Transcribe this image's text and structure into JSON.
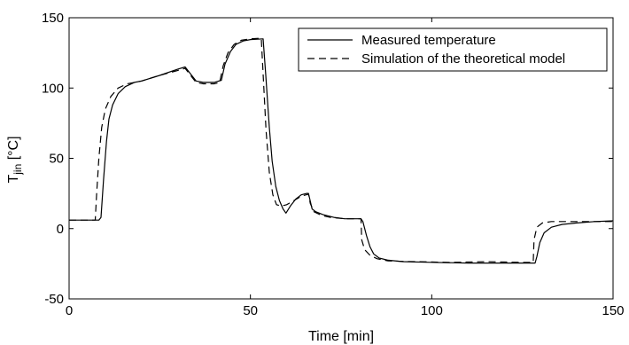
{
  "chart_data": {
    "type": "line",
    "xlabel": "Time [min]",
    "ylabel": {
      "base": "T",
      "sub": "jin",
      "rest": " [°C]"
    },
    "xlim": [
      0,
      150
    ],
    "ylim": [
      -50,
      150
    ],
    "xticks": [
      0,
      50,
      100,
      150
    ],
    "yticks": [
      -50,
      0,
      50,
      100,
      150
    ],
    "xtick_labels": [
      "0",
      "50",
      "100",
      "150"
    ],
    "ytick_labels": [
      "-50",
      "0",
      "50",
      "100",
      "150"
    ],
    "grid": false,
    "legend_position": "top-right",
    "series": [
      {
        "name": "Measured temperature",
        "style": "solid",
        "color": "#000000",
        "points": [
          [
            0,
            6
          ],
          [
            8.2,
            6
          ],
          [
            8.8,
            8
          ],
          [
            9.5,
            35
          ],
          [
            10.3,
            62
          ],
          [
            11,
            78
          ],
          [
            12,
            88
          ],
          [
            13.5,
            96
          ],
          [
            15.5,
            101
          ],
          [
            18,
            104
          ],
          [
            20,
            105
          ],
          [
            25,
            109
          ],
          [
            30,
            113.5
          ],
          [
            32,
            115
          ],
          [
            33.5,
            110
          ],
          [
            35,
            105
          ],
          [
            37,
            104
          ],
          [
            40,
            104
          ],
          [
            42,
            105.5
          ],
          [
            43,
            117
          ],
          [
            44.5,
            126
          ],
          [
            46,
            131
          ],
          [
            48,
            133.5
          ],
          [
            50,
            134.5
          ],
          [
            53.5,
            135
          ],
          [
            54.2,
            110
          ],
          [
            55.2,
            72
          ],
          [
            56,
            48
          ],
          [
            57,
            30
          ],
          [
            58,
            20
          ],
          [
            59,
            14
          ],
          [
            59.8,
            11
          ],
          [
            61,
            16
          ],
          [
            62.5,
            21
          ],
          [
            64,
            24
          ],
          [
            65.5,
            25
          ],
          [
            66,
            25
          ],
          [
            67,
            14
          ],
          [
            68,
            12
          ],
          [
            70,
            10
          ],
          [
            73,
            8
          ],
          [
            76,
            7
          ],
          [
            80.5,
            7
          ],
          [
            81,
            5
          ],
          [
            82,
            -5
          ],
          [
            83,
            -13
          ],
          [
            84,
            -18
          ],
          [
            85.5,
            -21
          ],
          [
            88,
            -22.5
          ],
          [
            92,
            -23.5
          ],
          [
            100,
            -24
          ],
          [
            110,
            -24.5
          ],
          [
            120,
            -24.5
          ],
          [
            128.5,
            -24.5
          ],
          [
            129,
            -20
          ],
          [
            129.8,
            -10
          ],
          [
            131,
            -3
          ],
          [
            133,
            1
          ],
          [
            136,
            3
          ],
          [
            140,
            4
          ],
          [
            145,
            5
          ],
          [
            150,
            5.5
          ]
        ]
      },
      {
        "name": "Simulation of the theoretical model",
        "style": "dashed",
        "color": "#000000",
        "points": [
          [
            0,
            6
          ],
          [
            7.2,
            6
          ],
          [
            7.6,
            25
          ],
          [
            8.2,
            50
          ],
          [
            9,
            72
          ],
          [
            10,
            85
          ],
          [
            11.5,
            94
          ],
          [
            13.5,
            100
          ],
          [
            16,
            103
          ],
          [
            18,
            104
          ],
          [
            20,
            105
          ],
          [
            25,
            109
          ],
          [
            30,
            112.5
          ],
          [
            32,
            114
          ],
          [
            33.5,
            109
          ],
          [
            35,
            104
          ],
          [
            37,
            103
          ],
          [
            40,
            103
          ],
          [
            41.5,
            104
          ],
          [
            42.5,
            116
          ],
          [
            43.8,
            125
          ],
          [
            45.5,
            131
          ],
          [
            47.5,
            134
          ],
          [
            50,
            135
          ],
          [
            53,
            135.5
          ],
          [
            53.5,
            110
          ],
          [
            54.3,
            70
          ],
          [
            55.2,
            40
          ],
          [
            56.2,
            24
          ],
          [
            57.2,
            17
          ],
          [
            58.5,
            16
          ],
          [
            60,
            17
          ],
          [
            62,
            20
          ],
          [
            64,
            23
          ],
          [
            66,
            24.5
          ],
          [
            66.5,
            18
          ],
          [
            67.5,
            12
          ],
          [
            69.5,
            9.5
          ],
          [
            72,
            8
          ],
          [
            76,
            7
          ],
          [
            80.5,
            7
          ],
          [
            80.7,
            -8
          ],
          [
            81.5,
            -15
          ],
          [
            83,
            -19
          ],
          [
            85,
            -21.5
          ],
          [
            88,
            -23
          ],
          [
            95,
            -23.5
          ],
          [
            105,
            -24
          ],
          [
            115,
            -23.5
          ],
          [
            125,
            -24
          ],
          [
            128,
            -24
          ],
          [
            128.2,
            -8
          ],
          [
            129,
            1
          ],
          [
            130.5,
            4
          ],
          [
            133,
            5
          ],
          [
            150,
            5
          ]
        ]
      }
    ]
  }
}
